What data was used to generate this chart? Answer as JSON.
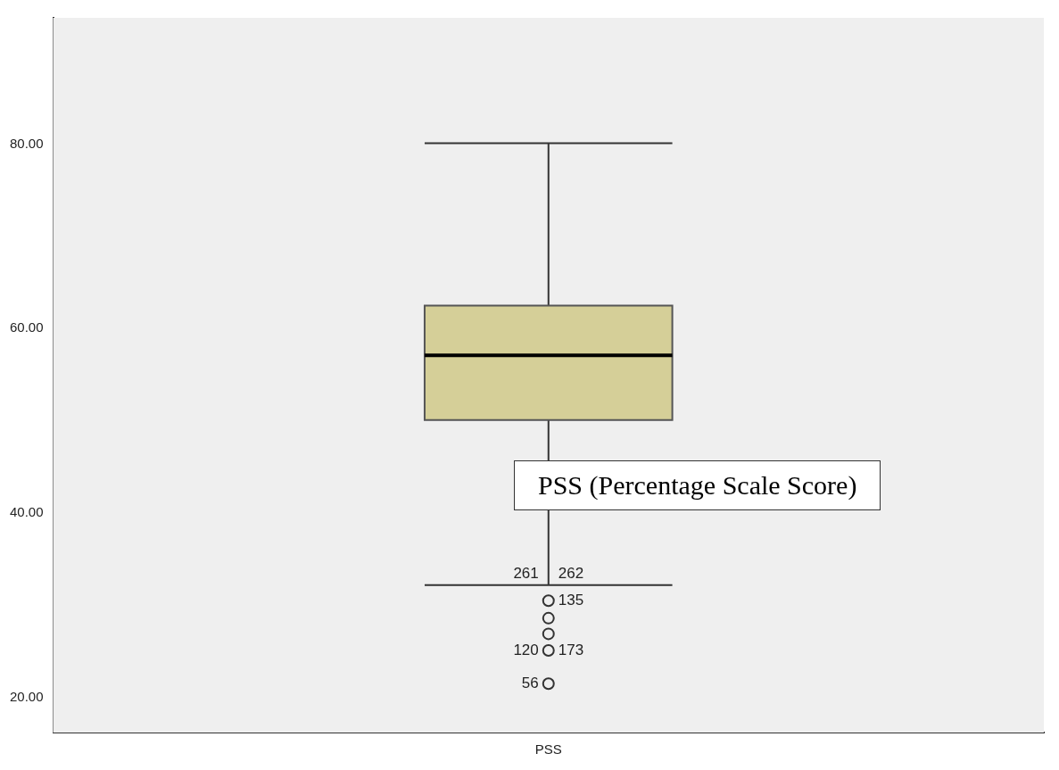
{
  "chart_data": {
    "type": "box",
    "categories": [
      "PSS"
    ],
    "boxes": [
      {
        "low": 32.2,
        "q1": 50.1,
        "median": 57.1,
        "q3": 62.5,
        "high": 80.1
      }
    ],
    "series": [
      {
        "type": "scatter",
        "color": "#333333",
        "x": [
          "PSS",
          "PSS",
          "PSS",
          "PSS",
          "PSS"
        ],
        "values": [
          30.5,
          28.6,
          26.9,
          25.1,
          21.5
        ]
      }
    ],
    "color": "#d5cf98",
    "ylim": [
      16.2,
      93.7
    ],
    "yticks": [
      {
        "value": 20,
        "label": "20.00"
      },
      {
        "value": 40,
        "label": "40.00"
      },
      {
        "value": 60,
        "label": "60.00"
      },
      {
        "value": 80,
        "label": "80.00"
      }
    ],
    "grid": false,
    "legend": false,
    "marker": "circle",
    "annotations": [
      "PSS (Percentage Scale Score)",
      {
        "text": "262",
        "x": "PSS",
        "y": 32.2
      },
      {
        "text": "261",
        "x": "PSS",
        "y": 32.2
      },
      {
        "text": "135",
        "x": "PSS",
        "y": 30.5
      },
      {
        "text": "120",
        "x": "PSS",
        "y": 25.1
      },
      {
        "text": "173",
        "x": "PSS",
        "y": 25.1
      },
      {
        "text": "56",
        "x": "PSS",
        "y": 21.5
      }
    ]
  }
}
